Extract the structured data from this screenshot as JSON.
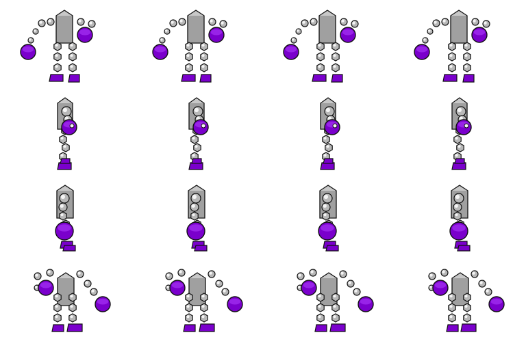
{
  "sprite_sheet": {
    "rows": 4,
    "columns": 4,
    "row_directions": [
      "front",
      "right",
      "back",
      "left"
    ],
    "palette": {
      "body": "#a0a0a0",
      "body_light": "#c8c8c8",
      "joint": "#b8b8b8",
      "joint_highlight": "#f4f4f4",
      "accent": "#7a00cc",
      "accent_light": "#b040ff",
      "outline": "#111111",
      "background": "#ffffff"
    },
    "frames_per_row": 4
  }
}
